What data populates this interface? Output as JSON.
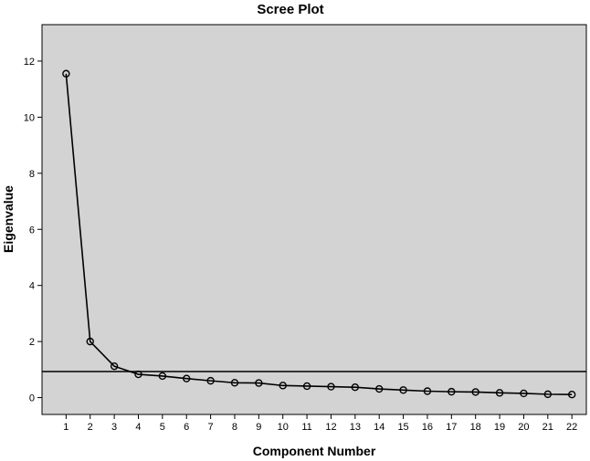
{
  "chart_data": {
    "type": "line",
    "title": "Scree Plot",
    "xlabel": "Component Number",
    "ylabel": "Eigenvalue",
    "x": [
      1,
      2,
      3,
      4,
      5,
      6,
      7,
      8,
      9,
      10,
      11,
      12,
      13,
      14,
      15,
      16,
      17,
      18,
      19,
      20,
      21,
      22
    ],
    "series": [
      {
        "values": [
          11.55,
          2.0,
          1.12,
          0.83,
          0.77,
          0.68,
          0.6,
          0.53,
          0.52,
          0.43,
          0.41,
          0.39,
          0.37,
          0.31,
          0.27,
          0.23,
          0.21,
          0.2,
          0.17,
          0.15,
          0.12,
          0.11
        ],
        "marker": "open-circle",
        "color": "#000000"
      }
    ],
    "reference_line": {
      "y": 0.93,
      "color": "#000000"
    },
    "xlim": [
      0,
      22.6
    ],
    "ylim": [
      -0.6,
      13.3
    ],
    "yticks": [
      0,
      2,
      4,
      6,
      8,
      10,
      12
    ],
    "xticks": [
      1,
      2,
      3,
      4,
      5,
      6,
      7,
      8,
      9,
      10,
      11,
      12,
      13,
      14,
      15,
      16,
      17,
      18,
      19,
      20,
      21,
      22
    ],
    "grid": false,
    "plot_background": "#d3d3d3"
  }
}
